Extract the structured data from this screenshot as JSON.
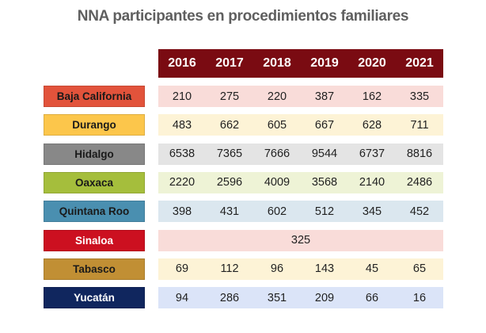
{
  "chart_data": {
    "type": "table",
    "title": "NNA participantes en procedimientos familiares",
    "columns": [
      "2016",
      "2017",
      "2018",
      "2019",
      "2020",
      "2021"
    ],
    "rows": [
      {
        "label": "Baja California",
        "values": [
          "210",
          "275",
          "220",
          "387",
          "162",
          "335"
        ],
        "label_bg": "#e2533b",
        "label_fg": "#1a1a1a",
        "row_bg": "#f9dcd9"
      },
      {
        "label": "Durango",
        "values": [
          "483",
          "662",
          "605",
          "667",
          "628",
          "711"
        ],
        "label_bg": "#fcc64b",
        "label_fg": "#1a1a1a",
        "row_bg": "#fdf3d6"
      },
      {
        "label": "Hidalgo",
        "values": [
          "6538",
          "7365",
          "7666",
          "9544",
          "6737",
          "8816"
        ],
        "label_bg": "#888888",
        "label_fg": "#1a1a1a",
        "row_bg": "#e4e4e4"
      },
      {
        "label": "Oaxaca",
        "values": [
          "2220",
          "2596",
          "4009",
          "3568",
          "2140",
          "2486"
        ],
        "label_bg": "#a5be3c",
        "label_fg": "#1a1a1a",
        "row_bg": "#eef3d6"
      },
      {
        "label": "Quintana Roo",
        "values": [
          "398",
          "431",
          "602",
          "512",
          "345",
          "452"
        ],
        "label_bg": "#4a8fb0",
        "label_fg": "#1a1a1a",
        "row_bg": "#dbe7ef"
      },
      {
        "label": "Sinaloa",
        "merged": "325",
        "label_bg": "#cc1020",
        "label_fg": "#ffffff",
        "row_bg": "#f9dcd9"
      },
      {
        "label": "Tabasco",
        "values": [
          "69",
          "112",
          "96",
          "143",
          "45",
          "65"
        ],
        "label_bg": "#c18f34",
        "label_fg": "#1a1a1a",
        "row_bg": "#fdf3d6"
      },
      {
        "label": "Yucatán",
        "values": [
          "94",
          "286",
          "351",
          "209",
          "66",
          "16"
        ],
        "label_bg": "#10265e",
        "label_fg": "#ffffff",
        "row_bg": "#dbe4f8"
      }
    ]
  }
}
